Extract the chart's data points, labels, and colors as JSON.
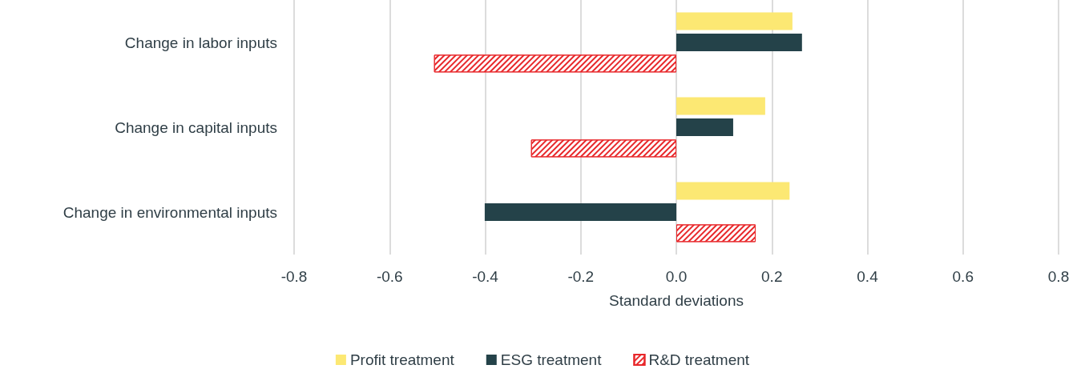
{
  "chart_data": {
    "type": "bar",
    "orientation": "horizontal",
    "xlabel": "Standard deviations",
    "categories": [
      "Change in labor inputs",
      "Change in capital inputs",
      "Change in environmental inputs"
    ],
    "series": [
      {
        "name": "Profit treatment",
        "color": "#fce873",
        "values": [
          0.243,
          0.186,
          0.237
        ]
      },
      {
        "name": "ESG treatment",
        "color": "#244249",
        "values": [
          0.263,
          0.119,
          -0.401
        ]
      },
      {
        "name": "R&D treatment",
        "color": "#e8272a",
        "values": [
          -0.507,
          -0.304,
          0.166
        ]
      }
    ],
    "xlim": [
      -0.8,
      0.8
    ],
    "xticks": [
      -0.8,
      -0.6,
      -0.4,
      -0.2,
      {
        "value": 0,
        "label": "0.0"
      },
      0.2,
      0.4,
      0.6,
      0.8
    ],
    "grid": "x",
    "legend": "bottom"
  }
}
